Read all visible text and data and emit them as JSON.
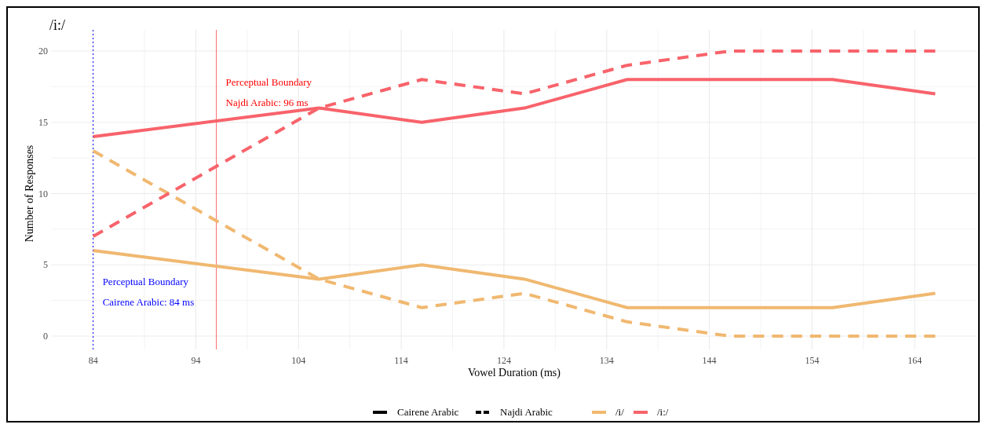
{
  "chart_data": {
    "type": "line",
    "title": "/i:/",
    "xlabel": "Vowel Duration (ms)",
    "ylabel": "Number of Responses",
    "x": [
      84,
      106,
      116,
      126,
      136,
      146,
      156,
      166
    ],
    "series": [
      {
        "name": "/i/",
        "color": "#f0b870",
        "line_style": "solid",
        "values": [
          6,
          4,
          5,
          4,
          2,
          2,
          2,
          3
        ]
      },
      {
        "name": "/i:/",
        "color": "#f8636b",
        "line_style": "solid",
        "values": [
          14,
          16,
          15,
          16,
          18,
          18,
          18,
          17
        ]
      },
      {
        "color": "#f0b870",
        "line_style": "dashed",
        "values": [
          13,
          4,
          2,
          3,
          1,
          0,
          0,
          0
        ]
      },
      {
        "color": "#f8636b",
        "line_style": "dashed",
        "values": [
          7,
          16,
          18,
          17,
          19,
          20,
          20,
          20
        ]
      }
    ],
    "xlim": [
      79.9,
      170.1
    ],
    "ylim": [
      0,
      20
    ],
    "xticks": [
      84,
      94,
      104,
      114,
      124,
      134,
      144,
      154,
      164
    ],
    "yticks": [
      0,
      5,
      10,
      15,
      20
    ],
    "ref_lines": [
      {
        "axis": "x",
        "value": 84,
        "label": "Perceptual Boundary\nCairene Arabic: 84 ms",
        "color": "#0000ff",
        "line_style": "dotted"
      },
      {
        "axis": "x",
        "value": 96,
        "label": "Perceptual Boundary\nNajdi Arabic: 96 ms",
        "color": "#ff0000",
        "line_style": "solid"
      }
    ],
    "annotations": [
      "Cairene Arabic",
      "Najdi Arabic"
    ],
    "grid": true,
    "legend": "bottom",
    "marker": "none"
  }
}
